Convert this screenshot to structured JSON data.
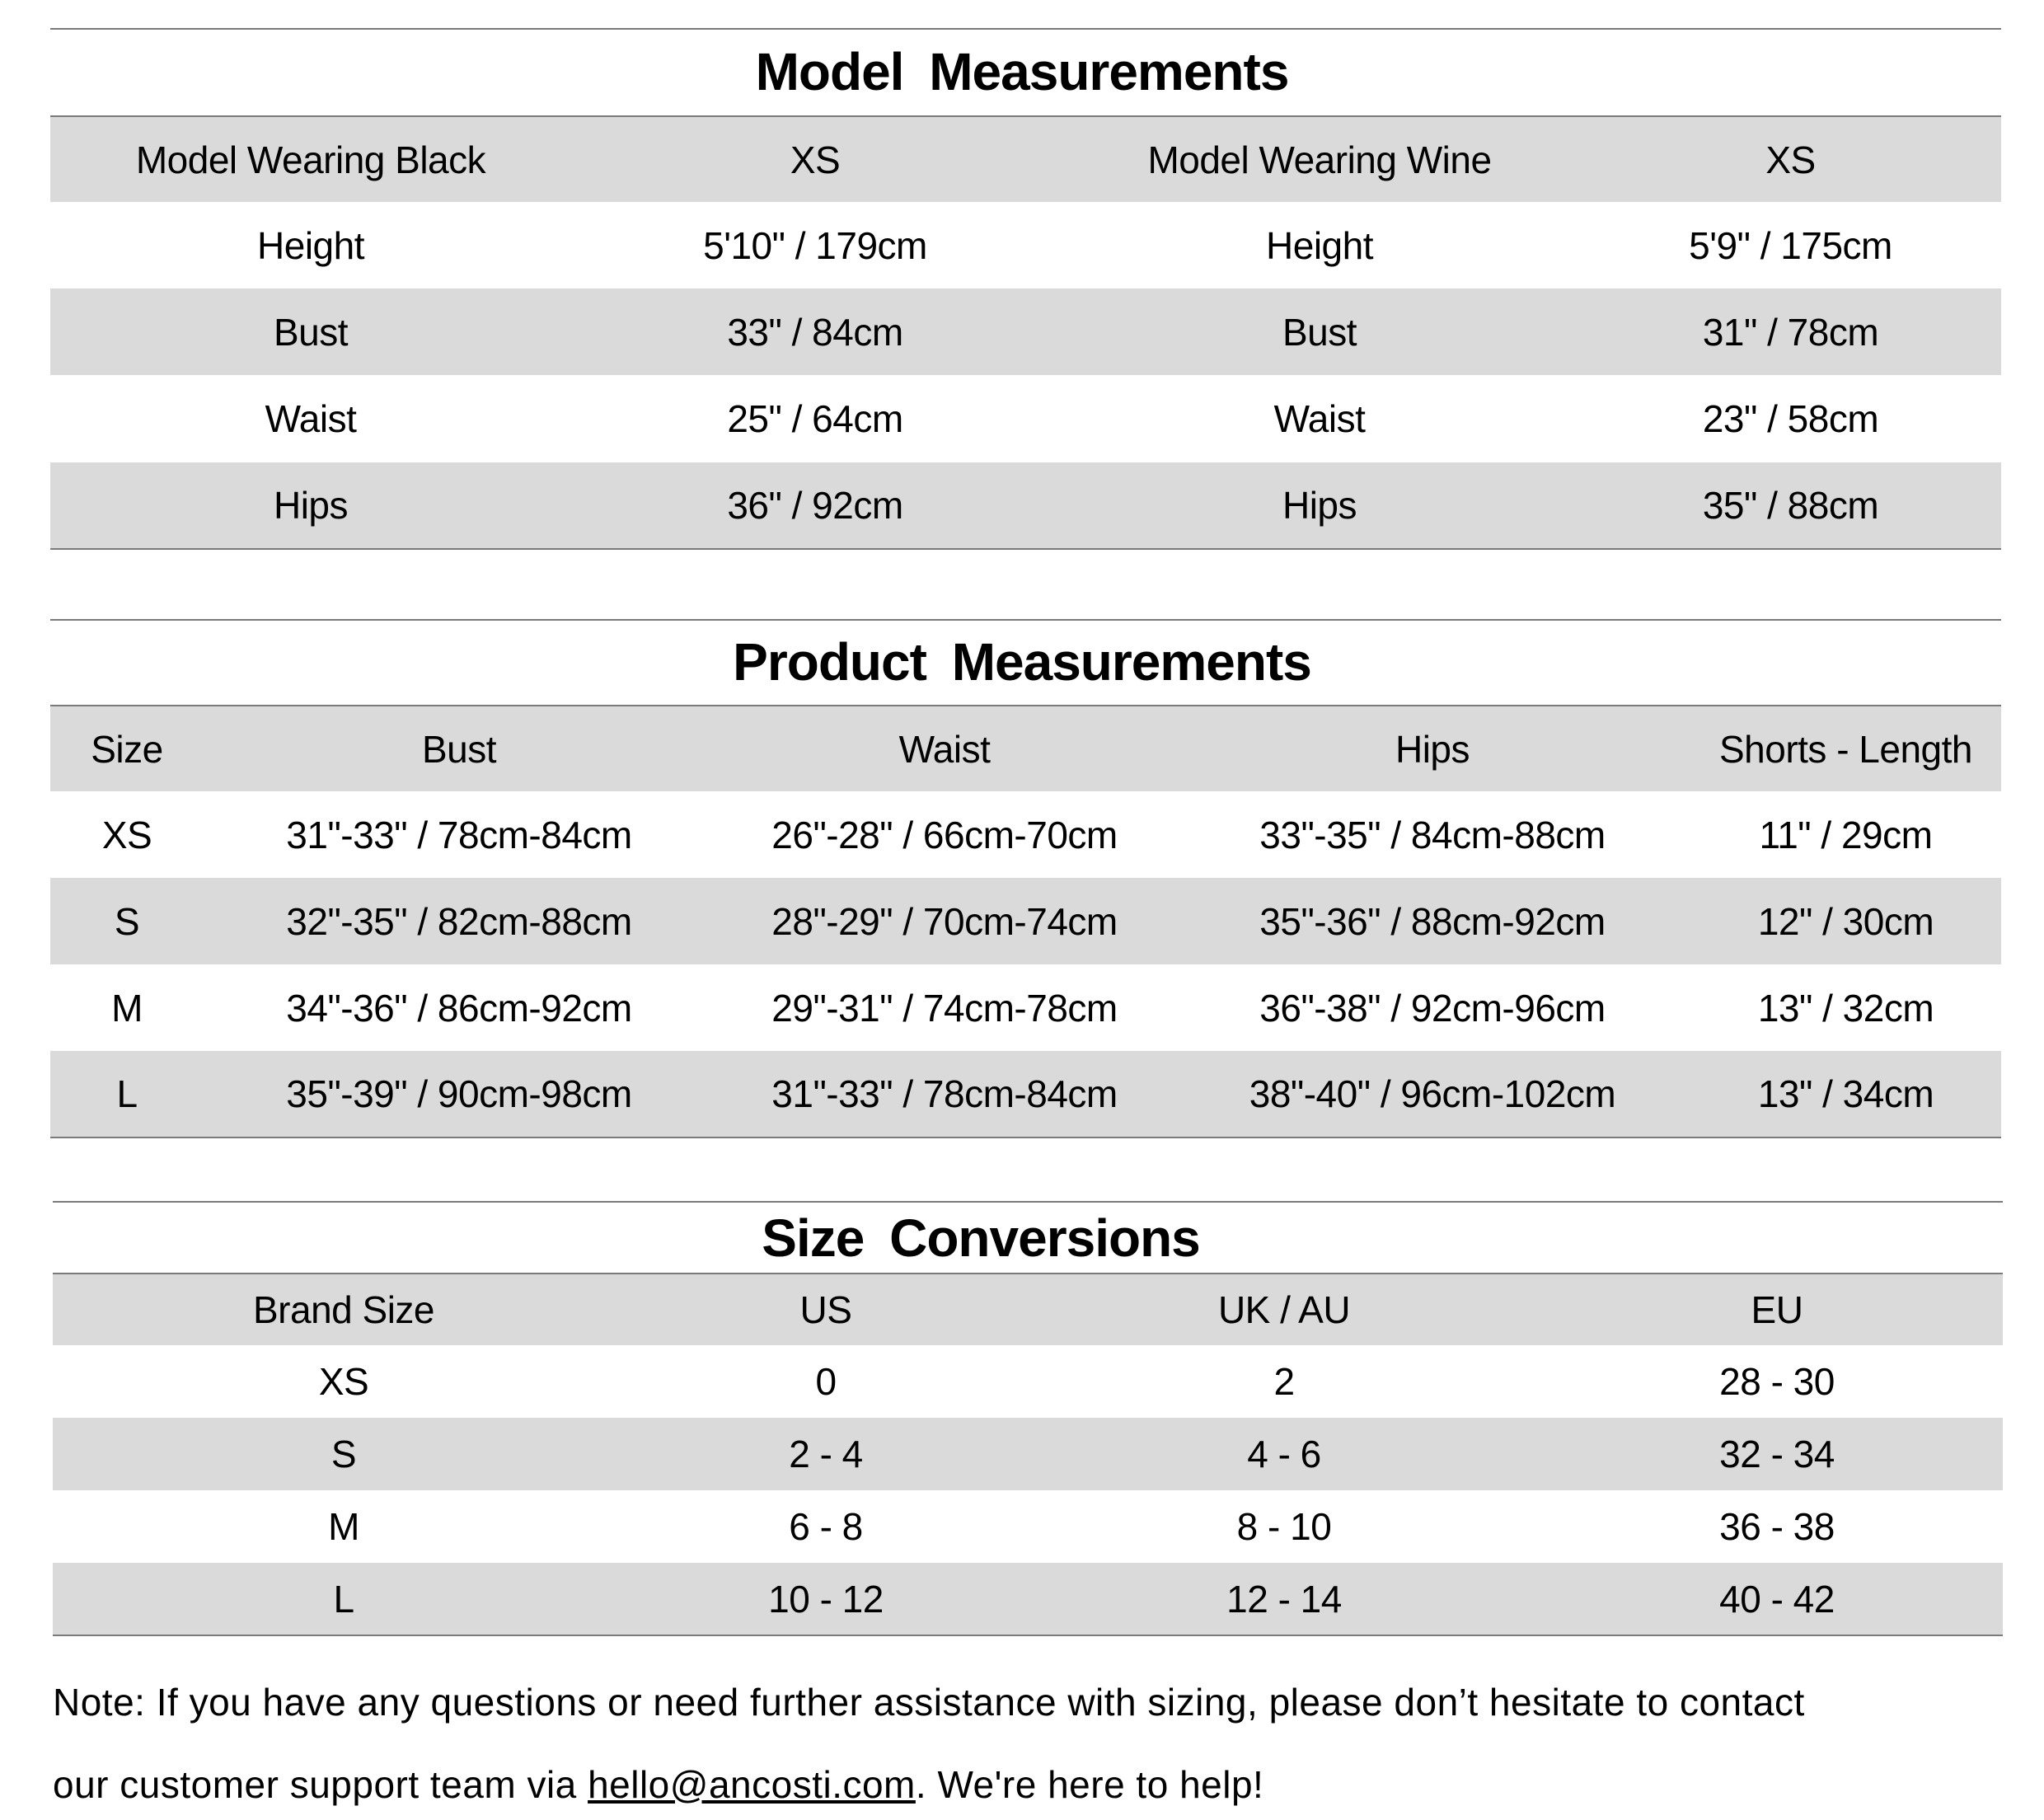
{
  "model_measurements": {
    "title": "Model  Measurements",
    "header": [
      "Model Wearing Black",
      "XS",
      "Model Wearing Wine",
      "XS"
    ],
    "rows": [
      [
        "Height",
        "5'10\" / 179cm",
        "Height",
        "5'9\" / 175cm"
      ],
      [
        "Bust",
        "33\" / 84cm",
        "Bust",
        "31\" / 78cm"
      ],
      [
        "Waist",
        "25\" / 64cm",
        "Waist",
        "23\" / 58cm"
      ],
      [
        "Hips",
        "36\" / 92cm",
        "Hips",
        "35\" / 88cm"
      ]
    ]
  },
  "product_measurements": {
    "title": "Product  Measurements",
    "header": [
      "Size",
      "Bust",
      "Waist",
      "Hips",
      "Shorts - Length"
    ],
    "rows": [
      [
        "XS",
        "31\"-33\" / 78cm-84cm",
        "26\"-28\" / 66cm-70cm",
        "33\"-35\" / 84cm-88cm",
        "11\" / 29cm"
      ],
      [
        "S",
        "32\"-35\" / 82cm-88cm",
        "28\"-29\" / 70cm-74cm",
        "35\"-36\" / 88cm-92cm",
        "12\" / 30cm"
      ],
      [
        "M",
        "34\"-36\" / 86cm-92cm",
        "29\"-31\" / 74cm-78cm",
        "36\"-38\" / 92cm-96cm",
        "13\" / 32cm"
      ],
      [
        "L",
        "35\"-39\" / 90cm-98cm",
        "31\"-33\" / 78cm-84cm",
        "38\"-40\" / 96cm-102cm",
        "13\" / 34cm"
      ]
    ]
  },
  "size_conversions": {
    "title": "Size  Conversions",
    "header": [
      "Brand Size",
      "US",
      "UK / AU",
      "EU"
    ],
    "rows": [
      [
        "XS",
        "0",
        "2",
        "28 - 30"
      ],
      [
        "S",
        "2 - 4",
        "4 - 6",
        "32 - 34"
      ],
      [
        "M",
        "6 - 8",
        "8 - 10",
        "36 - 38"
      ],
      [
        "L",
        "10 - 12",
        "12 - 14",
        "40 - 42"
      ]
    ]
  },
  "note": {
    "line1": "Note: If you have any questions or need further assistance with sizing, please don’t hesitate to contact",
    "line2_prefix": "our customer support team via ",
    "email": "hello@ancosti.com",
    "line2_suffix": ". We're here to help!"
  },
  "colors": {
    "row_shade": "#dadada",
    "rule": "#7a7a7a"
  }
}
